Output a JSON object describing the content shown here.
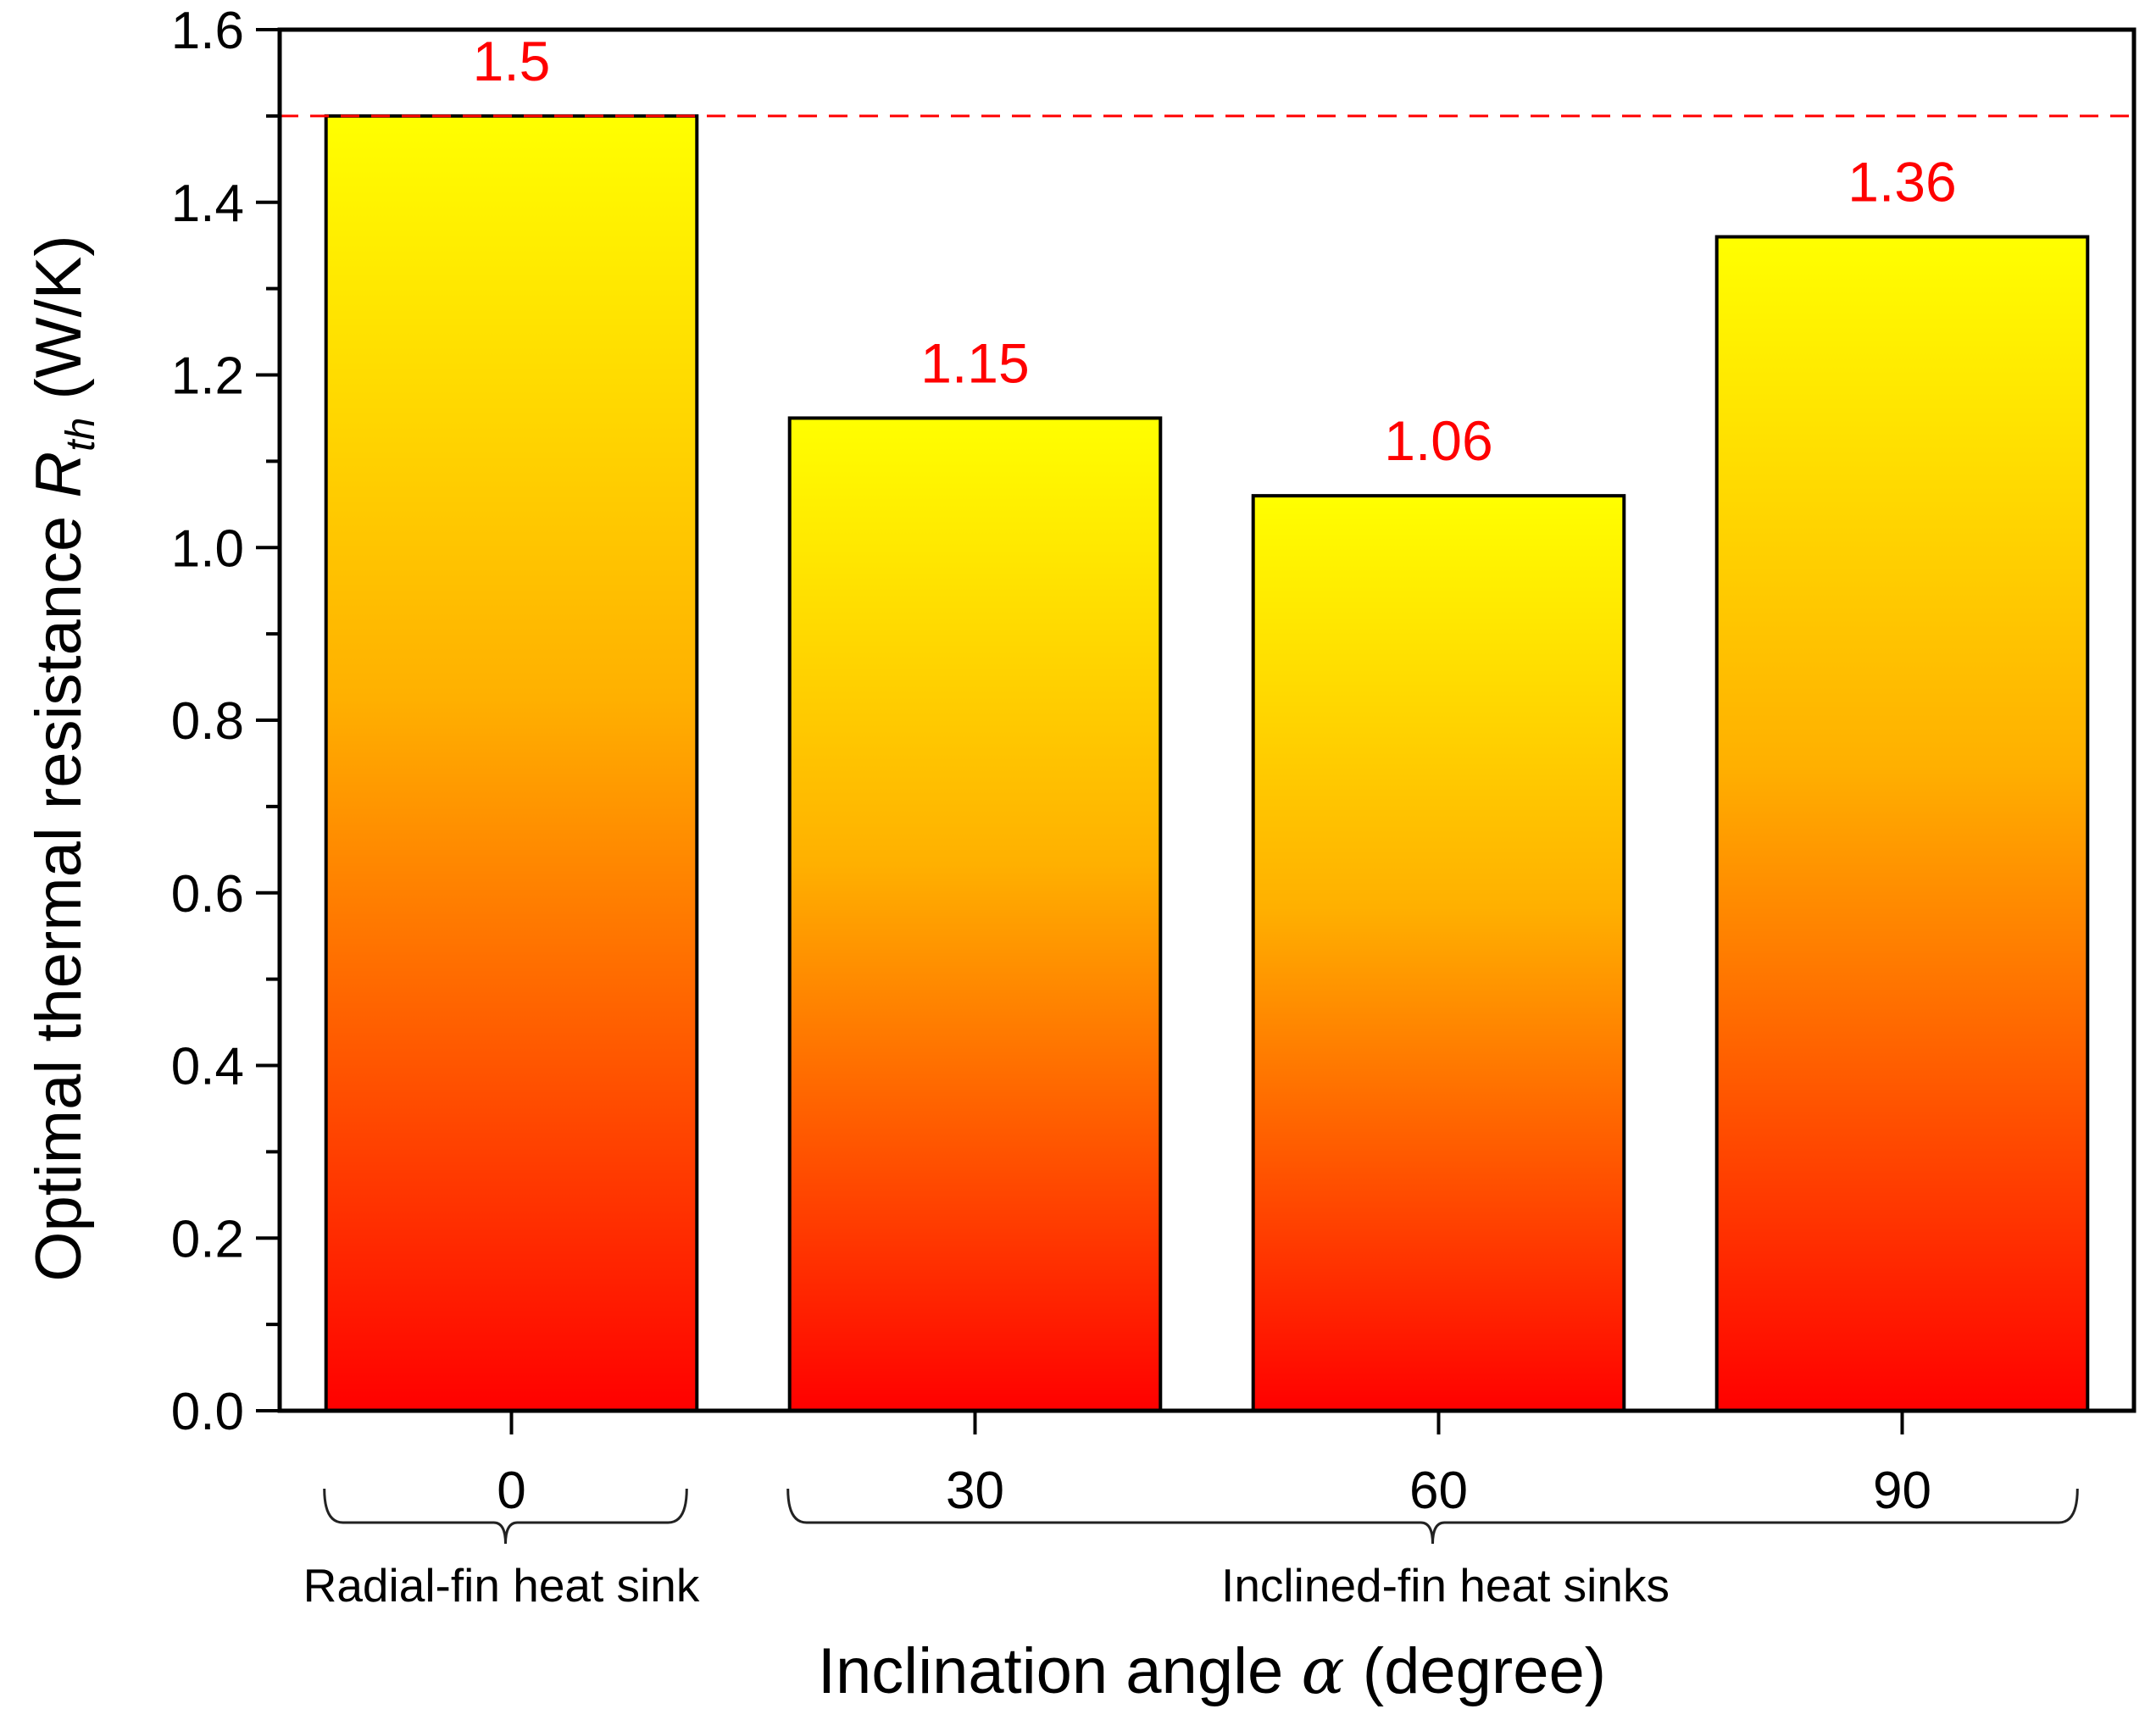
{
  "chart_data": {
    "type": "bar",
    "categories": [
      "0",
      "30",
      "60",
      "90"
    ],
    "values": [
      1.5,
      1.15,
      1.06,
      1.36
    ],
    "data_labels": [
      "1.5",
      "1.15",
      "1.06",
      "1.36"
    ],
    "title": "",
    "xlabel": {
      "prefix": "Inclination angle ",
      "symbol": "α",
      "suffix": " (degree)"
    },
    "ylabel": {
      "prefix": "Optimal thermal resistance ",
      "symbol": "R",
      "subscript": "th",
      "suffix": " (W/K)"
    },
    "ylim": [
      0,
      1.6
    ],
    "yticks": [
      "0.0",
      "0.2",
      "0.4",
      "0.6",
      "0.8",
      "1.0",
      "1.2",
      "1.4",
      "1.6"
    ],
    "reference_line": {
      "value": 1.5,
      "style": "dashed"
    },
    "groups": [
      {
        "label": "Radial-fin heat sink",
        "categories": [
          "0"
        ]
      },
      {
        "label": "Inclined-fin heat sinks",
        "categories": [
          "30",
          "60",
          "90"
        ]
      }
    ],
    "grid": false,
    "legend": "none"
  },
  "colors": {
    "bar_top": "#ffff00",
    "bar_mid": "#ffb000",
    "bar_bottom": "#ff0000",
    "data_label": "#ff0000",
    "reference_line": "#ff0000",
    "axis": "#000000"
  }
}
